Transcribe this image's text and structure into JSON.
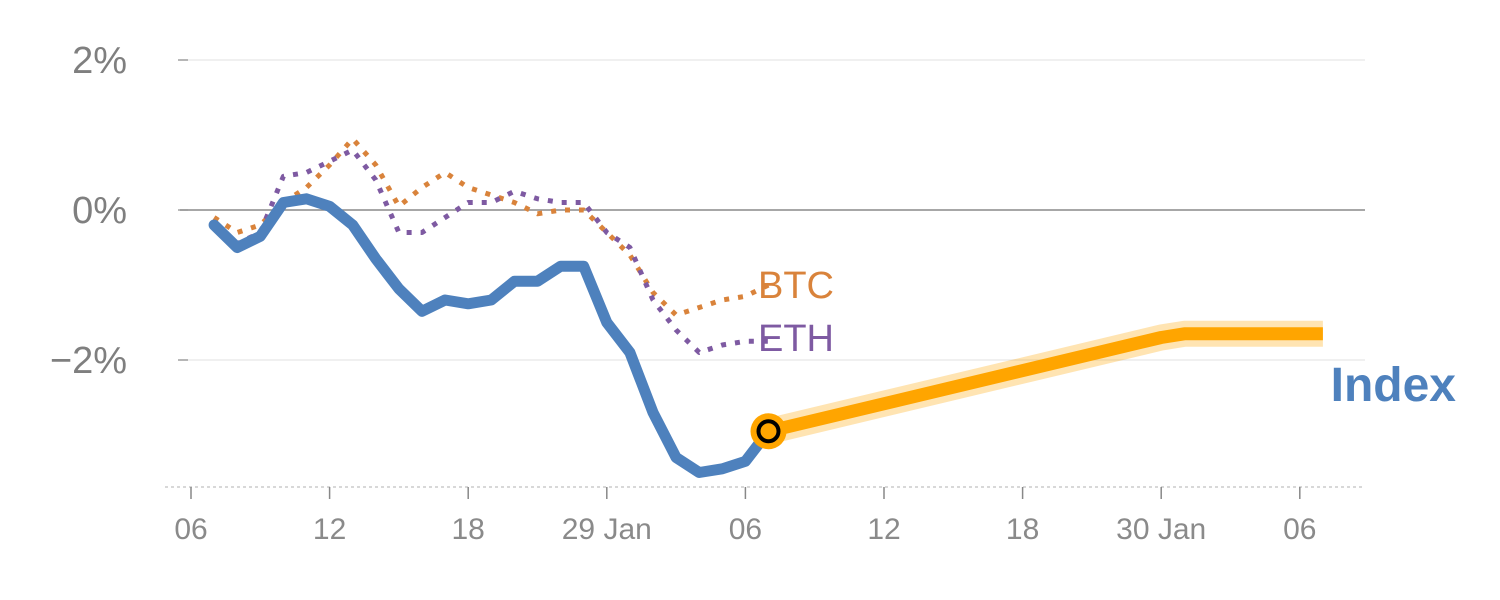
{
  "chart_data": {
    "type": "line",
    "ylim": [
      -3.7,
      2.2
    ],
    "y_ticks": [
      {
        "value": 2,
        "label": "2%"
      },
      {
        "value": 0,
        "label": "0%"
      },
      {
        "value": -2,
        "label": "−2%"
      }
    ],
    "x_ticks": [
      "06",
      "12",
      "18",
      "29 Jan",
      "06",
      "12",
      "18",
      "30 Jan",
      "06"
    ],
    "x_tick_index": [
      0,
      6,
      12,
      18,
      24,
      30,
      36,
      42,
      48
    ],
    "xlim": [
      -0.5,
      50.5
    ],
    "zero_line": true,
    "series": [
      {
        "name": "BTC",
        "style": "dotted",
        "color": "#d9833b",
        "x": [
          1,
          2,
          3,
          4,
          5,
          6,
          7,
          8,
          9,
          10,
          11,
          12,
          13,
          14,
          15,
          16,
          17,
          18,
          19,
          20,
          21,
          22,
          23,
          24,
          25
        ],
        "values": [
          -0.1,
          -0.3,
          -0.2,
          0.1,
          0.3,
          0.6,
          0.95,
          0.6,
          0.05,
          0.3,
          0.5,
          0.3,
          0.2,
          0.1,
          -0.05,
          0.0,
          0.0,
          -0.3,
          -0.6,
          -1.1,
          -1.4,
          -1.3,
          -1.2,
          -1.15,
          -1.0
        ]
      },
      {
        "name": "ETH",
        "style": "dotted",
        "color": "#7e5aa2",
        "x": [
          1,
          2,
          3,
          4,
          5,
          6,
          7,
          8,
          9,
          10,
          11,
          12,
          13,
          14,
          15,
          16,
          17,
          18,
          19,
          20,
          21,
          22,
          23,
          24,
          25
        ],
        "values": [
          -0.2,
          -0.45,
          -0.3,
          0.45,
          0.5,
          0.65,
          0.8,
          0.4,
          -0.3,
          -0.3,
          -0.1,
          0.1,
          0.1,
          0.25,
          0.15,
          0.1,
          0.1,
          -0.3,
          -0.5,
          -1.2,
          -1.6,
          -1.9,
          -1.8,
          -1.75,
          -1.75
        ]
      },
      {
        "name": "Index",
        "style": "solid",
        "color": "#4e81bd",
        "x": [
          1,
          2,
          3,
          4,
          5,
          6,
          7,
          8,
          9,
          10,
          11,
          12,
          13,
          14,
          15,
          16,
          17,
          18,
          19,
          20,
          21,
          22,
          23,
          24,
          25
        ],
        "values": [
          -0.2,
          -0.5,
          -0.35,
          0.1,
          0.15,
          0.05,
          -0.2,
          -0.65,
          -1.05,
          -1.35,
          -1.2,
          -1.25,
          -1.2,
          -0.95,
          -0.95,
          -0.75,
          -0.75,
          -1.5,
          -1.9,
          -2.7,
          -3.3,
          -3.5,
          -3.45,
          -3.35,
          -2.95
        ]
      },
      {
        "name": "",
        "style": "projection",
        "color": "#ffa500",
        "x": [
          25,
          42,
          43,
          49
        ],
        "values": [
          -2.95,
          -1.7,
          -1.65,
          -1.65
        ]
      }
    ],
    "marker": {
      "x": 25,
      "value": -2.95,
      "color": "#ffa500"
    },
    "labels": {
      "btc": "BTC",
      "eth": "ETH",
      "index": "Index"
    }
  }
}
